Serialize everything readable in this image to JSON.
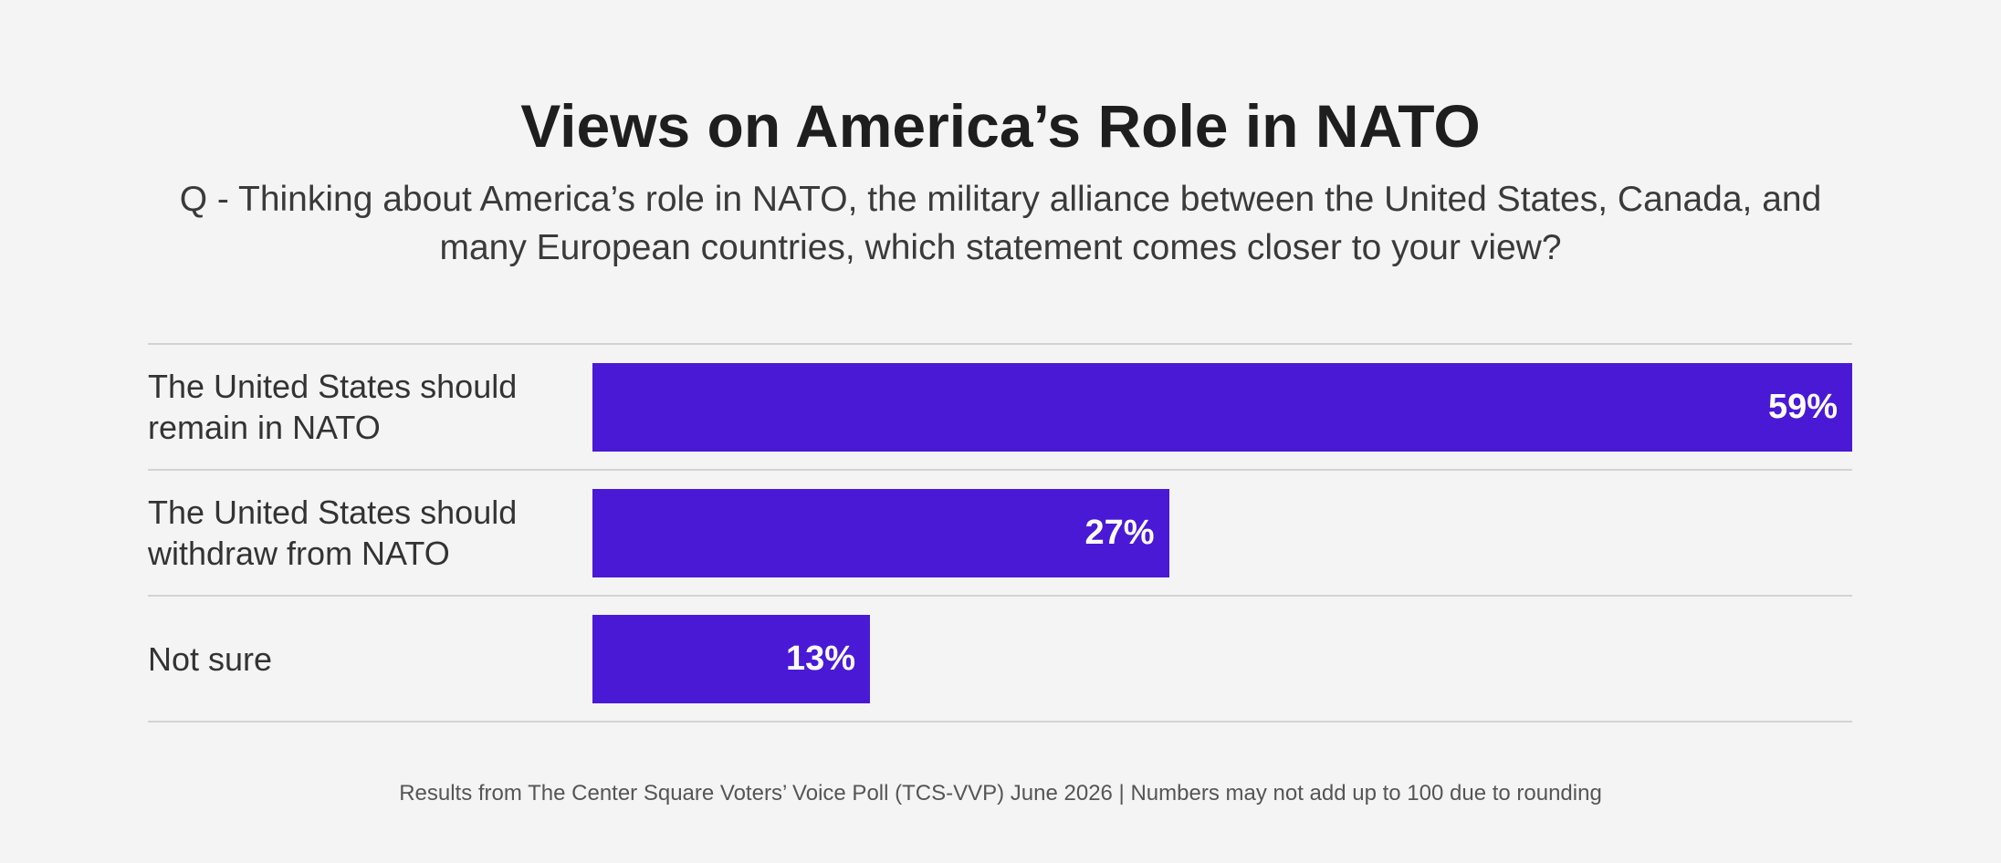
{
  "chart_data": {
    "type": "bar",
    "orientation": "horizontal",
    "title": "Views on America’s Role in NATO",
    "subtitle": "Q - Thinking about America’s role in NATO, the military alliance between the United States, Canada, and many European countries, which statement comes closer to your view?",
    "categories": [
      "The United States should remain in NATO",
      "The United States should withdraw from NATO",
      "Not sure"
    ],
    "values": [
      59,
      27,
      13
    ],
    "value_labels": [
      "59%",
      "27%",
      "13%"
    ],
    "color": "#4a19d6",
    "footer": "Results from The Center Square Voters’ Voice Poll (TCS-VVP) June 2026 | Numbers may not add up to 100 due to rounding"
  }
}
